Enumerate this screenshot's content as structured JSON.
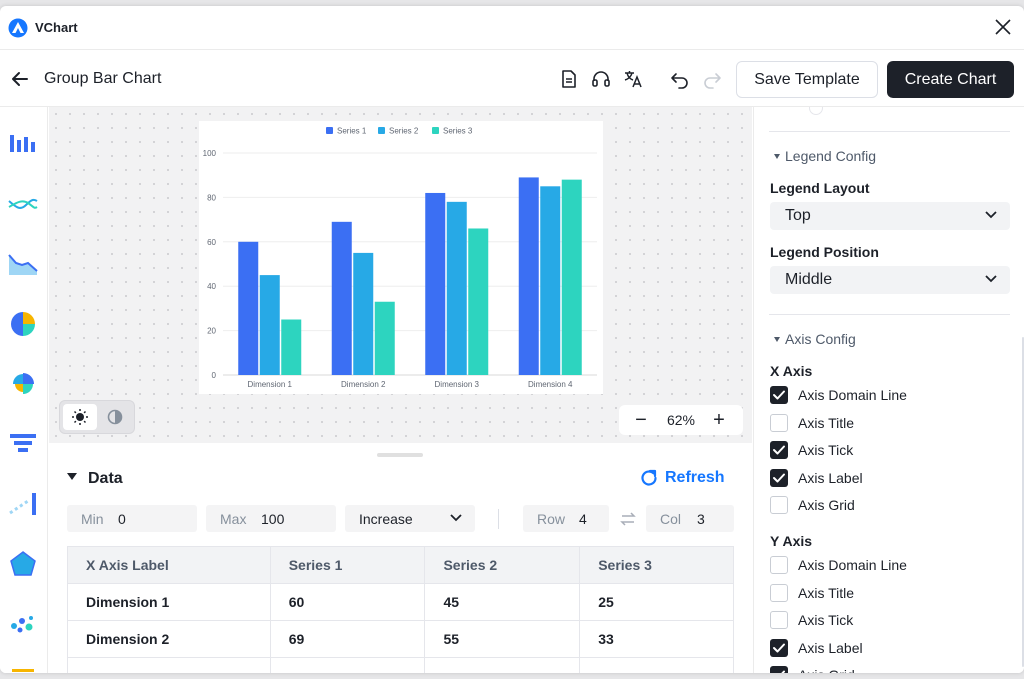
{
  "app": {
    "name": "VChart"
  },
  "toolbar": {
    "title": "Group Bar Chart",
    "save_label": "Save Template",
    "create_label": "Create Chart"
  },
  "colors": {
    "series1": "#3b6ff3",
    "series2": "#27a9e6",
    "series3": "#2dd4bf",
    "primary": "#1677ff",
    "dark": "#1d2129"
  },
  "sidebar": {
    "items": [
      {
        "icon": "bar-chart-icon"
      },
      {
        "icon": "line-chart-icon"
      },
      {
        "icon": "area-chart-icon"
      },
      {
        "icon": "pie-chart-icon"
      },
      {
        "icon": "rose-chart-icon"
      },
      {
        "icon": "funnel-chart-icon"
      },
      {
        "icon": "progress-chart-icon"
      },
      {
        "icon": "radar-chart-icon"
      },
      {
        "icon": "scatter-chart-icon"
      },
      {
        "icon": "wordcloud-chart-icon"
      }
    ]
  },
  "canvas": {
    "zoom": "62%"
  },
  "chart_data": {
    "type": "bar",
    "categories": [
      "Dimension 1",
      "Dimension 2",
      "Dimension 3",
      "Dimension 4"
    ],
    "series": [
      {
        "name": "Series 1",
        "values": [
          60,
          69,
          82,
          89
        ]
      },
      {
        "name": "Series 2",
        "values": [
          45,
          55,
          78,
          85
        ]
      },
      {
        "name": "Series 3",
        "values": [
          25,
          33,
          66,
          88
        ]
      }
    ],
    "ylim": [
      0,
      100
    ],
    "yticks": [
      "0",
      "20",
      "40",
      "60",
      "80",
      "100"
    ],
    "legend": "top",
    "grid": true
  },
  "data_panel": {
    "title": "Data",
    "refresh_label": "Refresh",
    "min_label": "Min",
    "min_value": "0",
    "max_label": "Max",
    "max_value": "100",
    "order": "Increase",
    "row_label": "Row",
    "row_value": "4",
    "col_label": "Col",
    "col_value": "3",
    "headers": [
      "X Axis Label",
      "Series 1",
      "Series 2",
      "Series 3"
    ],
    "rows": [
      [
        "Dimension 1",
        "60",
        "45",
        "25"
      ],
      [
        "Dimension 2",
        "69",
        "55",
        "33"
      ]
    ]
  },
  "config": {
    "legend_section": "Legend Config",
    "legend_layout_label": "Legend Layout",
    "legend_layout_value": "Top",
    "legend_position_label": "Legend Position",
    "legend_position_value": "Middle",
    "axis_section": "Axis Config",
    "x_axis_label": "X Axis",
    "x_axis_options": [
      {
        "label": "Axis Domain Line",
        "checked": true
      },
      {
        "label": "Axis Title",
        "checked": false
      },
      {
        "label": "Axis Tick",
        "checked": true
      },
      {
        "label": "Axis Label",
        "checked": true
      },
      {
        "label": "Axis Grid",
        "checked": false
      }
    ],
    "y_axis_label": "Y Axis",
    "y_axis_options": [
      {
        "label": "Axis Domain Line",
        "checked": false
      },
      {
        "label": "Axis Title",
        "checked": false
      },
      {
        "label": "Axis Tick",
        "checked": false
      },
      {
        "label": "Axis Label",
        "checked": true
      },
      {
        "label": "Axis Grid",
        "checked": true
      }
    ]
  }
}
